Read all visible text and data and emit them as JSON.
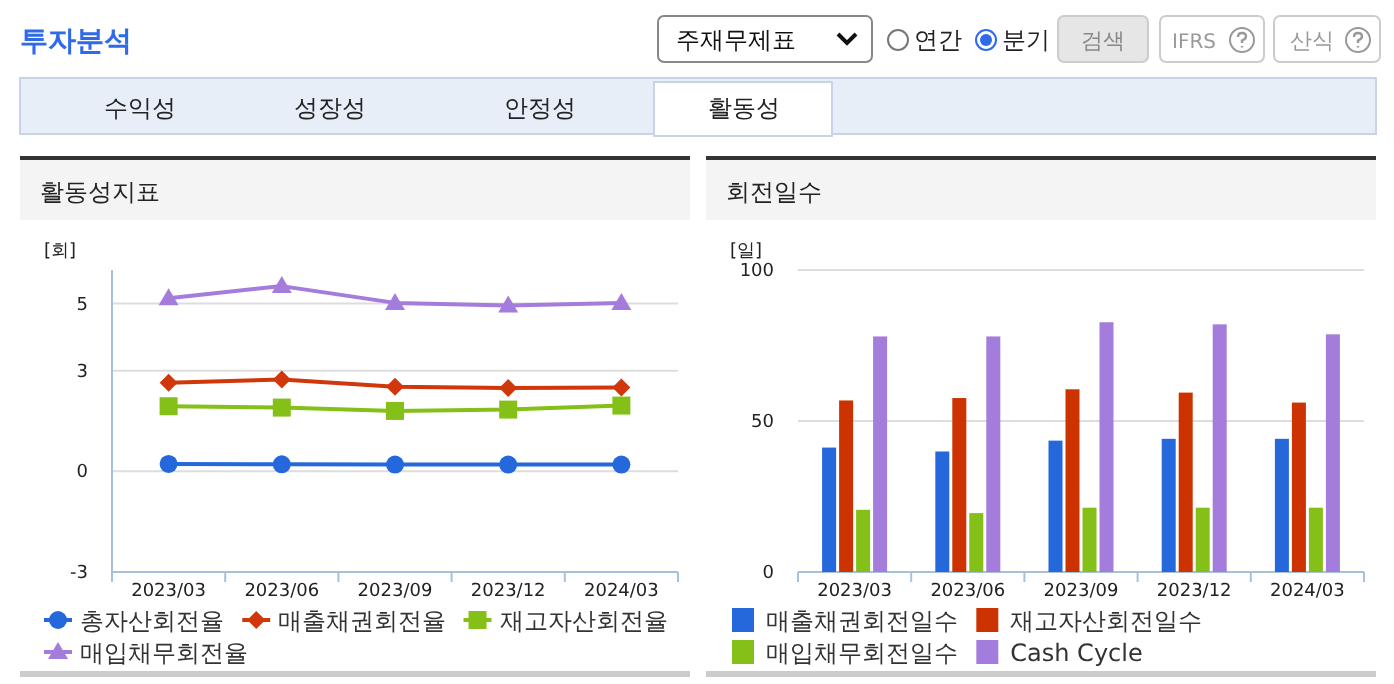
{
  "chart_data": [
    {
      "type": "other",
      "title": "투자분석",
      "annotations": [
        "주재무제표",
        "연간",
        "분기",
        "검색",
        "IFRS",
        "산식",
        "수익성",
        "성장성",
        "안정성",
        "활동성"
      ]
    },
    {
      "type": "line",
      "title": "활동성지표",
      "ylabel": "[회]",
      "categories": [
        "2023/03",
        "2023/06",
        "2023/09",
        "2023/12",
        "2024/03"
      ],
      "ylim": [
        -3,
        6
      ],
      "yticks": [
        -3,
        0,
        3,
        5
      ],
      "grid": "y",
      "legend": "bottom",
      "series": [
        {
          "name": "총자산회전율",
          "color": "#2468dc",
          "marker": "circle",
          "values": [
            0.22,
            0.21,
            0.2,
            0.2,
            0.2
          ]
        },
        {
          "name": "매출채권회전율",
          "color": "#d0380c",
          "marker": "diamond",
          "values": [
            2.64,
            2.74,
            2.52,
            2.48,
            2.5
          ]
        },
        {
          "name": "재고자산회전율",
          "color": "#84c018",
          "marker": "square",
          "values": [
            1.94,
            1.9,
            1.8,
            1.84,
            1.96
          ]
        },
        {
          "name": "매입채무회전율",
          "color": "#a47cdc",
          "marker": "triangle",
          "values": [
            5.16,
            5.52,
            5.02,
            4.94,
            5.02
          ]
        }
      ]
    },
    {
      "type": "bar",
      "title": "회전일수",
      "ylabel": "[일]",
      "categories": [
        "2023/03",
        "2023/06",
        "2023/09",
        "2023/12",
        "2024/03"
      ],
      "ylim": [
        0,
        100
      ],
      "yticks": [
        0,
        50,
        100
      ],
      "grid": "y",
      "legend": "bottom",
      "series": [
        {
          "name": "매출채권회전일수",
          "color": "#2468dc",
          "values": [
            41.2,
            39.9,
            43.5,
            44.1,
            44.1
          ]
        },
        {
          "name": "재고자산회전일수",
          "color": "#cc3300",
          "values": [
            56.8,
            57.6,
            60.5,
            59.4,
            56.1
          ]
        },
        {
          "name": "매입채무회전일수",
          "color": "#84c018",
          "values": [
            20.6,
            19.5,
            21.3,
            21.3,
            21.3
          ]
        },
        {
          "name": "Cash Cycle",
          "color": "#a47cdc",
          "values": [
            78,
            78,
            82.7,
            82,
            78.7
          ]
        }
      ]
    }
  ]
}
